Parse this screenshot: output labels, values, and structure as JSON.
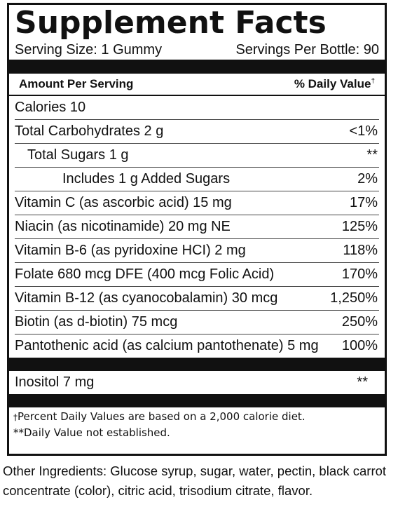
{
  "title": "Supplement Facts",
  "serving_size": "Serving Size: 1 Gummy",
  "servings_per": "Servings Per Bottle: 90",
  "header": {
    "amount": "Amount Per Serving",
    "dv": "% Daily Value",
    "dv_mark": "†"
  },
  "rows": [
    {
      "label": "Calories 10",
      "pct": ""
    },
    {
      "label": "Total Carbohydrates 2 g",
      "pct": "<1%"
    },
    {
      "label": "Total Sugars 1 g",
      "pct": "**"
    },
    {
      "label": "Includes 1 g Added Sugars",
      "pct": "2%"
    },
    {
      "label": "Vitamin C (as ascorbic acid) 15 mg",
      "pct": "17%"
    },
    {
      "label": "Niacin (as nicotinamide)  20 mg NE",
      "pct": "125%"
    },
    {
      "label": "Vitamin B-6 (as pyridoxine HCI) 2 mg",
      "pct": "118%"
    },
    {
      "label": "Folate 680 mcg DFE (400 mcg Folic Acid)",
      "pct": "170%"
    },
    {
      "label": "Vitamin B-12 (as cyanocobalamin) 30 mcg",
      "pct": "1,250%"
    },
    {
      "label": "Biotin (as d-biotin) 75 mcg",
      "pct": "250%"
    },
    {
      "label": "Pantothenic acid (as calcium pantothenate) 5 mg",
      "pct": "100%"
    }
  ],
  "extra_rows": [
    {
      "label": "Inositol  7 mg",
      "pct": "**"
    }
  ],
  "footnotes": {
    "dagger_mark": "†",
    "dagger_text": "Percent Daily Values are based on a 2,000 calorie diet.",
    "double_star": "**Daily Value not established."
  },
  "other_ingredients": "Other Ingredients: Glucose syrup, sugar, water, pectin,  black carrot concentrate (color), citric acid, trisodium citrate, flavor."
}
